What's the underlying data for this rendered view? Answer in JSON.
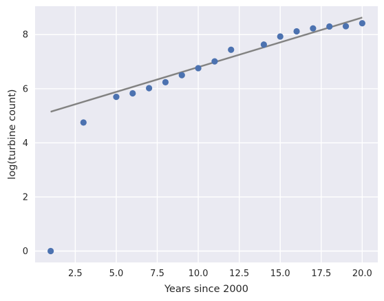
{
  "chart_data": {
    "type": "scatter",
    "title": "",
    "xlabel": "Years since 2000",
    "ylabel": "log(turbine count)",
    "xlim": [
      0.05,
      20.95
    ],
    "ylim": [
      -0.42,
      9.05
    ],
    "x_ticks": [
      2.5,
      5.0,
      7.5,
      10.0,
      12.5,
      15.0,
      17.5,
      20.0
    ],
    "x_tick_labels": [
      "2.5",
      "5.0",
      "7.5",
      "10.0",
      "12.5",
      "15.0",
      "17.5",
      "20.0"
    ],
    "y_ticks": [
      0,
      2,
      4,
      6,
      8
    ],
    "y_tick_labels": [
      "0",
      "2",
      "4",
      "6",
      "8"
    ],
    "grid": true,
    "background_color": "#eaeaf2",
    "point_color": "#4c72b0",
    "line_color": "#808080",
    "band_color": "#c8c8c8",
    "points": [
      {
        "x": 1,
        "y": 0.0
      },
      {
        "x": 3,
        "y": 4.75
      },
      {
        "x": 5,
        "y": 5.7
      },
      {
        "x": 6,
        "y": 5.83
      },
      {
        "x": 7,
        "y": 6.02
      },
      {
        "x": 8,
        "y": 6.24
      },
      {
        "x": 9,
        "y": 6.5
      },
      {
        "x": 10,
        "y": 6.76
      },
      {
        "x": 11,
        "y": 7.01
      },
      {
        "x": 12,
        "y": 7.44
      },
      {
        "x": 14,
        "y": 7.63
      },
      {
        "x": 15,
        "y": 7.93
      },
      {
        "x": 16,
        "y": 8.12
      },
      {
        "x": 17,
        "y": 8.23
      },
      {
        "x": 18,
        "y": 8.3
      },
      {
        "x": 19,
        "y": 8.31
      },
      {
        "x": 20,
        "y": 8.42
      }
    ],
    "fit_line": {
      "x": [
        1,
        20
      ],
      "y": [
        5.15,
        8.63
      ]
    },
    "fit_band_halfwidth": 0.04
  }
}
